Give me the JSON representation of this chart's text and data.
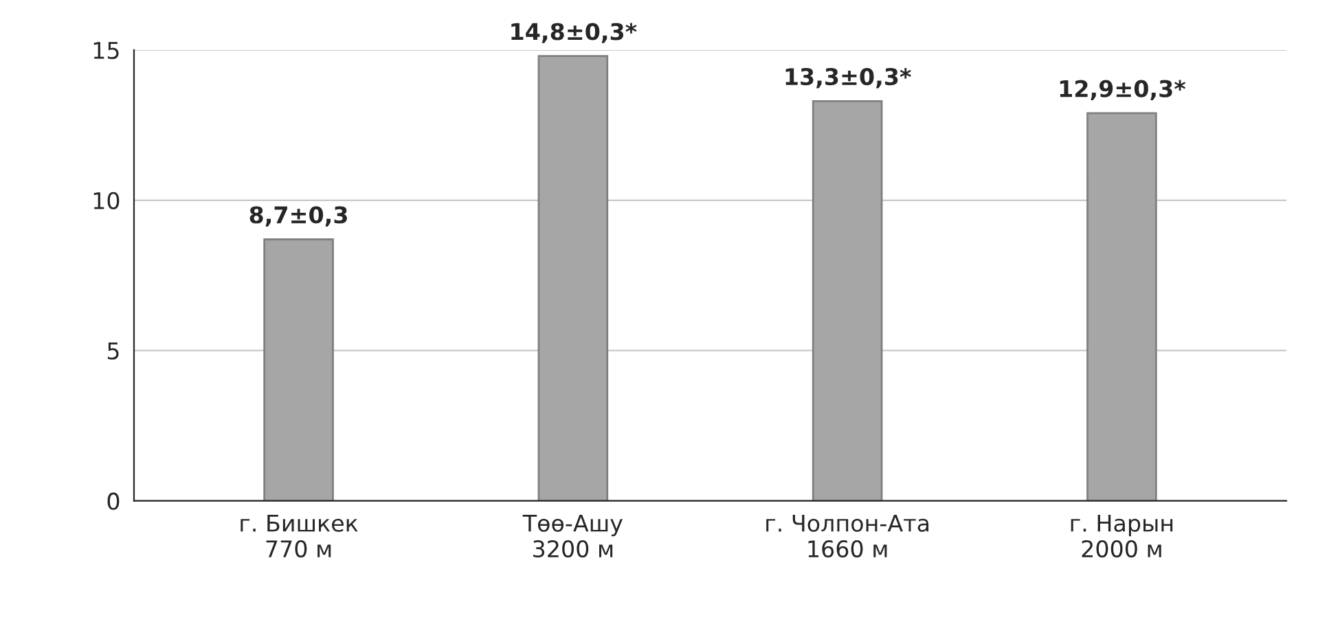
{
  "chart_data": {
    "type": "bar",
    "categories": [
      "г. Бишкек\n770 м",
      "Төө-Ашу\n3200 м",
      "г. Чолпон-Ата\n1660 м",
      "г. Нарын\n2000 м"
    ],
    "values": [
      8.7,
      14.8,
      13.3,
      12.9
    ],
    "value_labels": [
      "8,7±0,3",
      "14,8±0,3*",
      "13,3±0,3*",
      "12,9±0,3*"
    ],
    "color": "#a6a6a6",
    "ylim": [
      0,
      15
    ],
    "yticks": [
      0,
      5,
      10,
      15
    ],
    "grid": "y",
    "legend": false
  }
}
